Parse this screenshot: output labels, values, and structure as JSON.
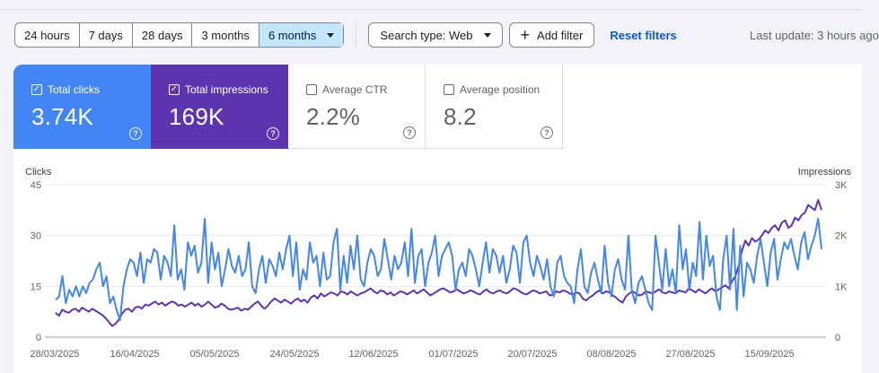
{
  "toolbar": {
    "ranges": [
      "24 hours",
      "7 days",
      "28 days",
      "3 months",
      "6 months"
    ],
    "active_range": "6 months",
    "search_type": "Search type: Web",
    "add_filter": "Add filter",
    "reset": "Reset filters",
    "last_update": "Last update: 3 hours ago"
  },
  "cards": [
    {
      "label": "Total clicks",
      "value": "3.74K",
      "checked": true,
      "color": "#4285f4"
    },
    {
      "label": "Total impressions",
      "value": "169K",
      "checked": true,
      "color": "#5e35b1"
    },
    {
      "label": "Average CTR",
      "value": "2.2%",
      "checked": false
    },
    {
      "label": "Average position",
      "value": "8.2",
      "checked": false
    }
  ],
  "chart_data": {
    "type": "line",
    "left_axis_label": "Clicks",
    "right_axis_label": "Impressions",
    "left_ticks": [
      "45",
      "30",
      "15",
      "0"
    ],
    "right_ticks": [
      "3K",
      "2K",
      "1K",
      "0"
    ],
    "left_range": [
      0,
      45
    ],
    "right_range": [
      0,
      3000
    ],
    "x_ticks": [
      "28/03/2025",
      "16/04/2025",
      "05/05/2025",
      "24/05/2025",
      "12/06/2025",
      "01/07/2025",
      "20/07/2025",
      "08/08/2025",
      "27/08/2025",
      "15/09/2025"
    ],
    "series": [
      {
        "name": "Clicks",
        "color": "#4285f4",
        "axis": "left",
        "values": [
          11,
          12,
          18,
          10,
          14,
          12,
          15,
          12,
          15,
          13,
          16,
          17,
          20,
          22,
          15,
          18,
          10,
          12,
          8,
          5,
          15,
          20,
          23,
          22,
          18,
          25,
          16,
          23,
          22,
          26,
          25,
          17,
          24,
          22,
          18,
          33,
          17,
          20,
          14,
          28,
          24,
          27,
          19,
          22,
          35,
          16,
          28,
          20,
          25,
          15,
          20,
          26,
          21,
          19,
          24,
          18,
          20,
          28,
          15,
          13,
          20,
          24,
          16,
          23,
          21,
          18,
          25,
          20,
          26,
          30,
          18,
          28,
          14,
          20,
          17,
          28,
          22,
          24,
          15,
          25,
          17,
          18,
          28,
          32,
          14,
          24,
          16,
          27,
          20,
          30,
          17,
          15,
          22,
          26,
          24,
          18,
          20,
          29,
          23,
          17,
          24,
          20,
          22,
          28,
          18,
          32,
          16,
          24,
          26,
          15,
          22,
          25,
          30,
          18,
          24,
          26,
          28,
          24,
          14,
          20,
          22,
          18,
          26,
          24,
          20,
          15,
          22,
          28,
          19,
          26,
          24,
          19,
          24,
          16,
          20,
          27,
          25,
          16,
          28,
          30,
          22,
          18,
          24,
          21,
          17,
          23,
          15,
          12,
          22,
          24,
          18,
          16,
          15,
          10,
          20,
          26,
          15,
          13,
          19,
          22,
          17,
          13,
          27,
          16,
          12,
          20,
          23,
          17,
          14,
          30,
          14,
          10,
          16,
          18,
          14,
          10,
          8,
          30,
          22,
          14,
          26,
          15,
          20,
          13,
          33,
          20,
          26,
          14,
          22,
          18,
          34,
          17,
          30,
          21,
          24,
          12,
          8,
          23,
          30,
          14,
          32,
          8,
          27,
          12,
          22,
          20,
          16,
          24,
          29,
          22,
          15,
          25,
          29,
          17,
          23,
          28,
          26,
          29,
          24,
          20,
          28,
          31,
          23,
          27,
          30,
          35,
          26
        ]
      },
      {
        "name": "Impressions",
        "color": "#5e35b1",
        "axis": "right",
        "values": [
          480,
          420,
          540,
          500,
          480,
          540,
          560,
          500,
          580,
          540,
          500,
          560,
          520,
          480,
          440,
          380,
          300,
          220,
          260,
          340,
          460,
          540,
          560,
          500,
          580,
          600,
          560,
          640,
          620,
          660,
          700,
          640,
          680,
          620,
          660,
          700,
          680,
          620,
          640,
          600,
          640,
          680,
          620,
          660,
          600,
          640,
          700,
          640,
          580,
          600,
          660,
          620,
          560,
          540,
          560,
          580,
          520,
          560,
          540,
          600,
          660,
          700,
          620,
          560,
          620,
          700,
          760,
          720,
          680,
          740,
          700,
          660,
          720,
          760,
          700,
          740,
          680,
          780,
          820,
          760,
          860,
          800,
          840,
          880,
          860,
          820,
          900,
          880,
          840,
          900,
          860,
          820,
          860,
          880,
          920,
          960,
          900,
          860,
          920,
          900,
          840,
          880,
          820,
          860,
          900,
          880,
          840,
          880,
          920,
          860,
          900,
          940,
          880,
          820,
          860,
          900,
          940,
          960,
          920,
          880,
          900,
          940,
          900,
          860,
          880,
          920,
          900,
          860,
          840,
          900,
          940,
          880,
          860,
          900,
          920,
          880,
          860,
          900,
          960,
          940,
          900,
          860,
          840,
          880,
          920,
          900,
          860,
          880,
          900,
          820,
          840,
          900,
          880,
          920,
          900,
          860,
          840,
          880,
          860,
          760,
          720,
          780,
          820,
          880,
          920,
          860,
          900,
          880,
          820,
          780,
          720,
          680,
          800,
          860,
          900,
          860,
          820,
          840,
          900,
          880,
          860,
          900,
          940,
          880,
          860,
          900,
          880,
          860,
          920,
          900,
          880,
          960,
          920,
          880,
          940,
          900,
          860,
          920,
          960,
          900,
          940,
          980,
          1020,
          960,
          1100,
          1200,
          1400,
          1700,
          1900,
          1800,
          1950,
          1880,
          1920,
          2000,
          2100,
          2050,
          2150,
          2200,
          2100,
          2250,
          2300,
          2150,
          2200,
          2350,
          2300,
          2400,
          2450,
          2600,
          2550,
          2500,
          2700,
          2500
        ]
      }
    ]
  }
}
